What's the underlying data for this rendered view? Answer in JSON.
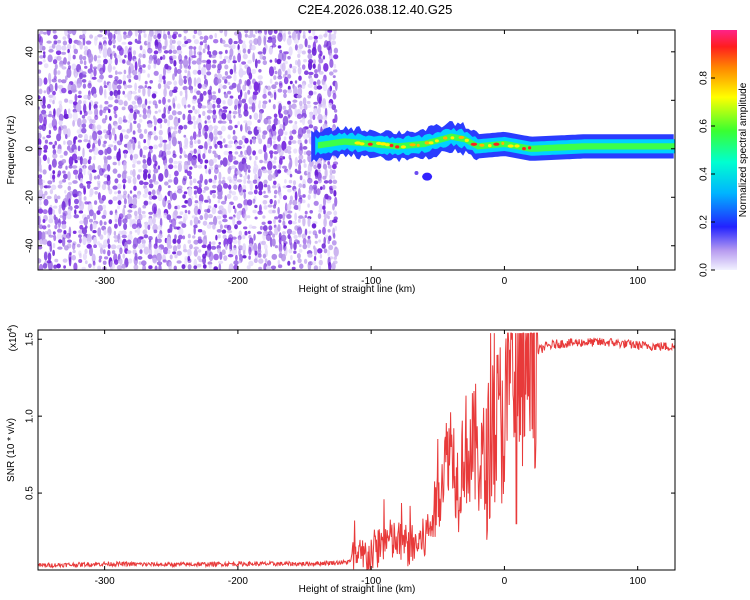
{
  "title": "C2E4.2026.038.12.40.G25",
  "colors": {
    "background": "#ffffff",
    "axis": "#000000",
    "snr_line": "#e83a3a",
    "noise_purple": "#7a2ce0",
    "noise_light": "#cdb6f2"
  },
  "chart_data": [
    {
      "type": "heatmap",
      "name": "spectrogram",
      "title": "C2E4.2026.038.12.40.G25",
      "xlabel": "Height of straight line (km)",
      "ylabel": "Frequency (Hz)",
      "xlim": [
        -350,
        128
      ],
      "ylim": [
        -50,
        49
      ],
      "xticks": [
        -300,
        -200,
        -100,
        0,
        100
      ],
      "yticks": [
        -40,
        -20,
        0,
        20,
        40
      ],
      "colorbar": {
        "label": "Normalized spectral amplitude",
        "range": [
          0,
          1
        ],
        "ticks": [
          "0.0",
          "0.2",
          "0.4",
          "0.6",
          "0.8"
        ]
      },
      "features": {
        "noise_region_x": [
          -350,
          -127
        ],
        "signal_start_x": -145,
        "signal_frequency_hz": 1,
        "signal_track": [
          {
            "x": -145,
            "f": 1
          },
          {
            "x": -120,
            "f": 3
          },
          {
            "x": -100,
            "f": 2
          },
          {
            "x": -80,
            "f": 1
          },
          {
            "x": -60,
            "f": 2
          },
          {
            "x": -40,
            "f": 5
          },
          {
            "x": -30,
            "f": 4
          },
          {
            "x": -20,
            "f": 1
          },
          {
            "x": 0,
            "f": 2
          },
          {
            "x": 20,
            "f": 0
          },
          {
            "x": 60,
            "f": 1
          },
          {
            "x": 128,
            "f": 1
          }
        ]
      }
    },
    {
      "type": "line",
      "name": "snr",
      "xlabel": "Height of straight line (km)",
      "ylabel": "SNR (10 * v/v)",
      "scale_label": "(x10",
      "scale_exponent": "4",
      "xlim": [
        -350,
        128
      ],
      "ylim": [
        0,
        1.56
      ],
      "xticks": [
        -300,
        -200,
        -100,
        0,
        100
      ],
      "yticks": [
        "0.5",
        "1.0",
        "1.5"
      ],
      "series": [
        {
          "name": "SNR",
          "points": [
            [
              -350,
              0.03
            ],
            [
              -320,
              0.035
            ],
            [
              -300,
              0.04
            ],
            [
              -250,
              0.035
            ],
            [
              -200,
              0.04
            ],
            [
              -150,
              0.04
            ],
            [
              -120,
              0.05
            ],
            [
              -110,
              0.06
            ],
            [
              -100,
              0.1
            ],
            [
              -90,
              0.2
            ],
            [
              -80,
              0.18
            ],
            [
              -70,
              0.15
            ],
            [
              -60,
              0.2
            ],
            [
              -55,
              0.3
            ],
            [
              -50,
              0.45
            ],
            [
              -45,
              0.7
            ],
            [
              -40,
              0.85
            ],
            [
              -35,
              0.55
            ],
            [
              -30,
              0.8
            ],
            [
              -25,
              0.75
            ],
            [
              -20,
              0.8
            ],
            [
              -15,
              0.6
            ],
            [
              -10,
              0.85
            ],
            [
              -5,
              0.95
            ],
            [
              0,
              1.0
            ],
            [
              5,
              1.15
            ],
            [
              10,
              1.2
            ],
            [
              15,
              1.3
            ],
            [
              20,
              1.38
            ],
            [
              25,
              1.42
            ],
            [
              30,
              1.45
            ],
            [
              40,
              1.47
            ],
            [
              60,
              1.48
            ],
            [
              80,
              1.48
            ],
            [
              100,
              1.46
            ],
            [
              128,
              1.45
            ]
          ]
        }
      ]
    }
  ]
}
